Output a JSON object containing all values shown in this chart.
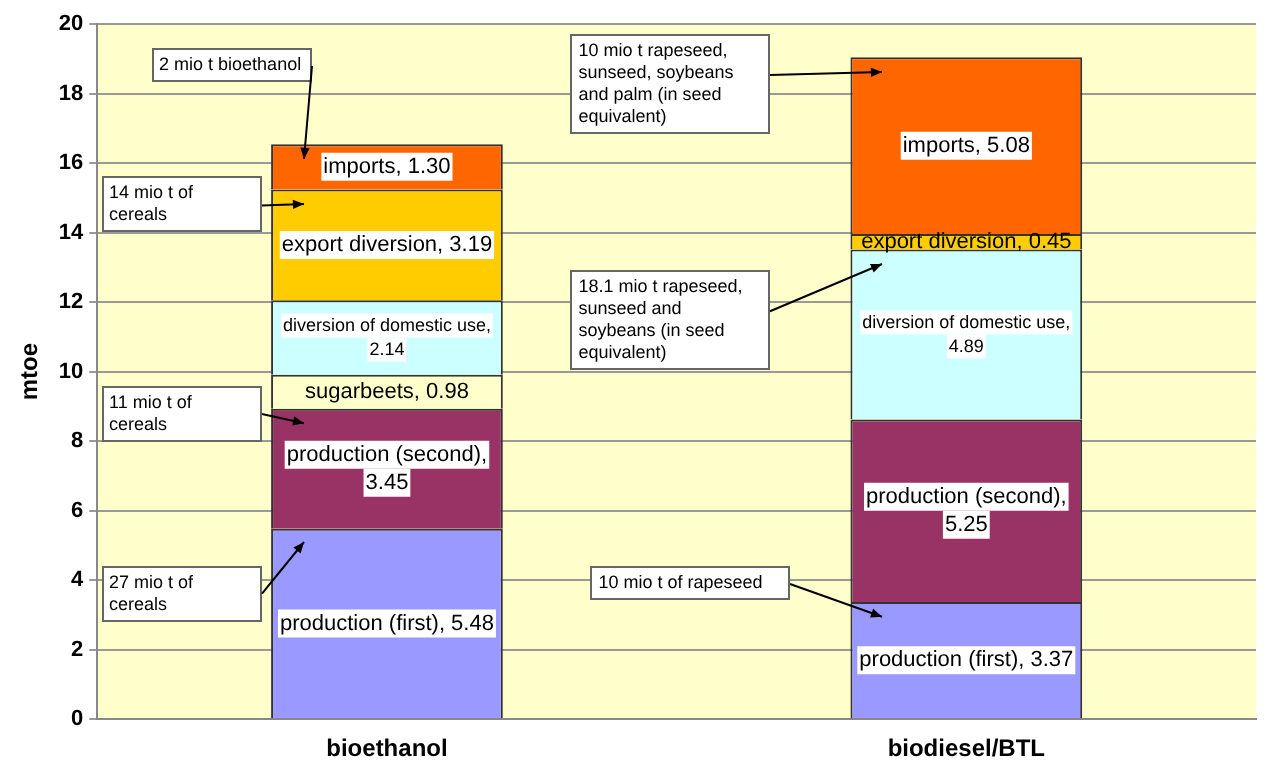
{
  "chart_data": {
    "type": "bar",
    "stacked": true,
    "ylabel": "mtoe",
    "categories": [
      "bioethanol",
      "biodiesel/BTL"
    ],
    "ylim": [
      0,
      20
    ],
    "yticks": [
      0,
      2,
      4,
      6,
      8,
      10,
      12,
      14,
      16,
      18,
      20
    ],
    "grid": "y",
    "legend": false,
    "series": [
      {
        "color": "#9999ff",
        "values": [
          5.48,
          3.37
        ],
        "value_labels": [
          "production (first), 5.48",
          "production (first), 3.37"
        ]
      },
      {
        "color": "#993366",
        "values": [
          3.45,
          5.25
        ],
        "value_labels": [
          "production (second), 3.45",
          "production (second), 5.25"
        ]
      },
      {
        "color": "#ffffcc",
        "values": [
          0.98,
          null
        ],
        "value_labels": [
          "sugarbeets, 0.98",
          null
        ]
      },
      {
        "color": "#ccffff",
        "values": [
          2.14,
          4.89
        ],
        "value_labels": [
          "diversion of domestic use, 2.14",
          "diversion of domestic use, 4.89"
        ]
      },
      {
        "color": "#ffcc00",
        "values": [
          3.19,
          0.45
        ],
        "value_labels": [
          "export diversion, 3.19",
          "export diversion, 0.45"
        ]
      },
      {
        "color": "#ff6600",
        "values": [
          1.3,
          5.08
        ],
        "value_labels": [
          "imports, 1.30",
          "imports, 5.08"
        ]
      }
    ],
    "annotations": [
      "2 mio t bioethanol",
      "14 mio t of cereals",
      "11 mio t of cereals",
      "27 mio t of cereals",
      "10 mio t rapeseed, sunseed, soybeans and palm (in seed equivalent)",
      "18.1 mio t rapeseed, sunseed and soybeans (in seed equivalent)",
      "10 mio t of rapeseed"
    ]
  }
}
